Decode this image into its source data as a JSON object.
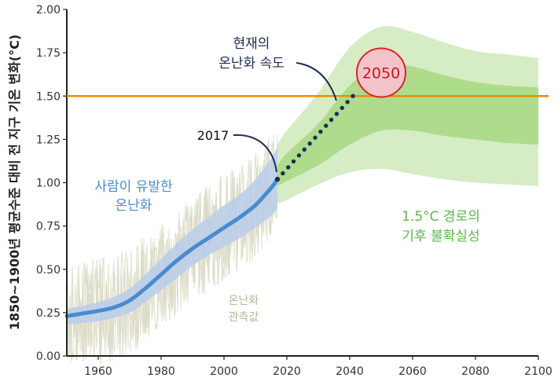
{
  "chart_data": {
    "type": "line",
    "ylabel": "1850~1900년 평균수준 대비 전 지구 기온 변화(°C)",
    "xlim": [
      1950,
      2100
    ],
    "ylim": [
      0.0,
      2.0
    ],
    "x_ticks": [
      "1960",
      "1980",
      "2000",
      "2020",
      "2040",
      "2060",
      "2080",
      "2100"
    ],
    "y_ticks": [
      "0.00",
      "0.25",
      "0.50",
      "0.75",
      "1.00",
      "1.25",
      "1.50",
      "1.75",
      "2.00"
    ],
    "highlight_y_tick": "1.50",
    "threshold_line": {
      "y": 1.5,
      "color": "#f08c00"
    },
    "colors": {
      "human_line": "#4a8bd0",
      "human_band": "#b9cdea",
      "observed": "#d9d9c4",
      "pathway_outer": "#d5ecc4",
      "pathway_inner": "#aedb8c",
      "pathway_text": "#57b848",
      "rate_dots": "#1b2d55",
      "marker_fill": "#f2c4ca",
      "marker_stroke": "#e0202c"
    },
    "series": [
      {
        "name": "사람이 유발한 온난화",
        "x": [
          1950,
          1960,
          1965,
          1970,
          1975,
          1980,
          1985,
          1990,
          1995,
          2000,
          2005,
          2010,
          2015,
          2017
        ],
        "y": [
          0.23,
          0.26,
          0.28,
          0.32,
          0.39,
          0.47,
          0.55,
          0.62,
          0.68,
          0.74,
          0.8,
          0.87,
          0.97,
          1.02
        ],
        "band_lower": [
          0.18,
          0.2,
          0.22,
          0.25,
          0.31,
          0.38,
          0.45,
          0.52,
          0.58,
          0.63,
          0.68,
          0.74,
          0.81,
          0.85
        ],
        "band_upper": [
          0.27,
          0.31,
          0.34,
          0.39,
          0.47,
          0.56,
          0.65,
          0.73,
          0.8,
          0.87,
          0.93,
          1.02,
          1.14,
          1.21
        ]
      },
      {
        "name": "현재의 온난화 속도",
        "x": [
          2017,
          2041
        ],
        "y": [
          1.02,
          1.5
        ]
      },
      {
        "name": "1.5°C 경로의 기후 불확실성",
        "x": [
          2017,
          2020,
          2030,
          2040,
          2050,
          2060,
          2070,
          2080,
          2090,
          2100
        ],
        "outer_lower": [
          0.88,
          0.9,
          0.99,
          1.06,
          1.08,
          1.05,
          1.02,
          1.0,
          0.99,
          0.98
        ],
        "outer_upper": [
          1.22,
          1.3,
          1.52,
          1.78,
          1.9,
          1.87,
          1.81,
          1.76,
          1.74,
          1.72
        ],
        "inner_lower": [
          0.98,
          1.01,
          1.1,
          1.22,
          1.3,
          1.3,
          1.27,
          1.25,
          1.23,
          1.22
        ],
        "inner_upper": [
          1.1,
          1.17,
          1.34,
          1.56,
          1.69,
          1.67,
          1.62,
          1.58,
          1.56,
          1.55
        ]
      }
    ],
    "observed_label": [
      "온난화",
      "관측값"
    ],
    "annotations": [
      {
        "name": "human-warming",
        "lines": [
          "사람이 유발한",
          "온난화"
        ]
      },
      {
        "name": "current-rate",
        "lines": [
          "현재의",
          "온난화 속도"
        ]
      },
      {
        "name": "pathway-uncertainty",
        "lines": [
          "1.5°C 경로의",
          "기후 불확실성"
        ]
      },
      {
        "name": "year-2017",
        "lines": [
          "2017"
        ]
      },
      {
        "name": "year-2050",
        "lines": [
          "2050"
        ]
      }
    ],
    "marker_2050": {
      "x": 2050,
      "y": 1.635
    },
    "point_2017": {
      "x": 2017,
      "y": 1.02
    },
    "grid": false
  }
}
